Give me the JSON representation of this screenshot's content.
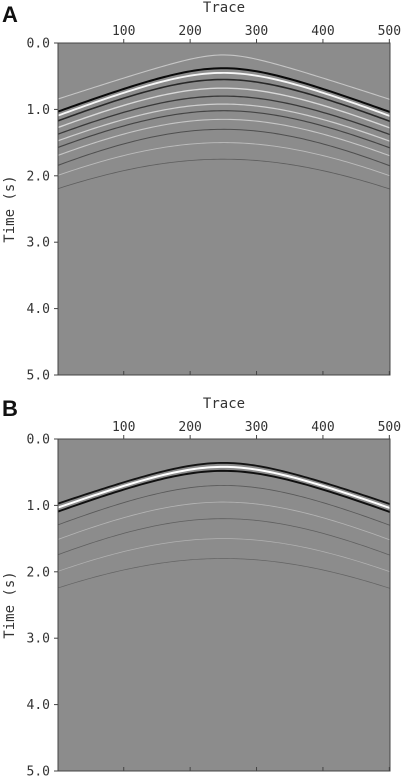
{
  "chart_data": [
    {
      "panel": "A",
      "type": "heatmap",
      "xlabel": "Trace",
      "ylabel": "Time (s)",
      "xlim": [
        1,
        501
      ],
      "ylim": [
        5.0,
        0.0
      ],
      "x_ticks": [
        "100",
        "200",
        "300",
        "400",
        "500"
      ],
      "y_ticks": [
        "0.0",
        "1.0",
        "2.0",
        "3.0",
        "4.0",
        "5.0"
      ],
      "background_color": "#8c8c8c",
      "events": [
        {
          "apex_trace": 250,
          "apex_time": 0.18,
          "edge_time": 0.85,
          "tone": "light",
          "strength": 0.35
        },
        {
          "apex_trace": 250,
          "apex_time": 0.38,
          "edge_time": 1.04,
          "tone": "dark",
          "strength": 1.0
        },
        {
          "apex_trace": 250,
          "apex_time": 0.45,
          "edge_time": 1.1,
          "tone": "light",
          "strength": 0.9
        },
        {
          "apex_trace": 250,
          "apex_time": 0.55,
          "edge_time": 1.18,
          "tone": "dark",
          "strength": 0.7
        },
        {
          "apex_trace": 250,
          "apex_time": 0.68,
          "edge_time": 1.28,
          "tone": "light",
          "strength": 0.55
        },
        {
          "apex_trace": 250,
          "apex_time": 0.8,
          "edge_time": 1.38,
          "tone": "dark",
          "strength": 0.5
        },
        {
          "apex_trace": 250,
          "apex_time": 0.92,
          "edge_time": 1.48,
          "tone": "light",
          "strength": 0.45
        },
        {
          "apex_trace": 250,
          "apex_time": 1.02,
          "edge_time": 1.58,
          "tone": "dark",
          "strength": 0.4
        },
        {
          "apex_trace": 250,
          "apex_time": 1.15,
          "edge_time": 1.7,
          "tone": "light",
          "strength": 0.35
        },
        {
          "apex_trace": 250,
          "apex_time": 1.3,
          "edge_time": 1.85,
          "tone": "dark",
          "strength": 0.3
        },
        {
          "apex_trace": 250,
          "apex_time": 1.5,
          "edge_time": 2.0,
          "tone": "light",
          "strength": 0.22
        },
        {
          "apex_trace": 250,
          "apex_time": 1.75,
          "edge_time": 2.2,
          "tone": "dark",
          "strength": 0.15
        }
      ]
    },
    {
      "panel": "B",
      "type": "heatmap",
      "xlabel": "Trace",
      "ylabel": "Time (s)",
      "xlim": [
        1,
        501
      ],
      "ylim": [
        5.0,
        0.0
      ],
      "x_ticks": [
        "100",
        "200",
        "300",
        "400",
        "500"
      ],
      "y_ticks": [
        "0.0",
        "1.0",
        "2.0",
        "3.0",
        "4.0",
        "5.0"
      ],
      "background_color": "#8c8c8c",
      "events": [
        {
          "apex_trace": 250,
          "apex_time": 0.36,
          "edge_time": 0.98,
          "tone": "dark",
          "strength": 0.9
        },
        {
          "apex_trace": 250,
          "apex_time": 0.42,
          "edge_time": 1.04,
          "tone": "light",
          "strength": 1.0
        },
        {
          "apex_trace": 250,
          "apex_time": 0.48,
          "edge_time": 1.1,
          "tone": "dark",
          "strength": 0.95
        },
        {
          "apex_trace": 250,
          "apex_time": 0.7,
          "edge_time": 1.3,
          "tone": "dark",
          "strength": 0.18
        },
        {
          "apex_trace": 250,
          "apex_time": 0.95,
          "edge_time": 1.52,
          "tone": "light",
          "strength": 0.15
        },
        {
          "apex_trace": 250,
          "apex_time": 1.2,
          "edge_time": 1.75,
          "tone": "dark",
          "strength": 0.12
        },
        {
          "apex_trace": 250,
          "apex_time": 1.5,
          "edge_time": 2.0,
          "tone": "light",
          "strength": 0.1
        },
        {
          "apex_trace": 250,
          "apex_time": 1.8,
          "edge_time": 2.25,
          "tone": "dark",
          "strength": 0.08
        }
      ]
    }
  ]
}
